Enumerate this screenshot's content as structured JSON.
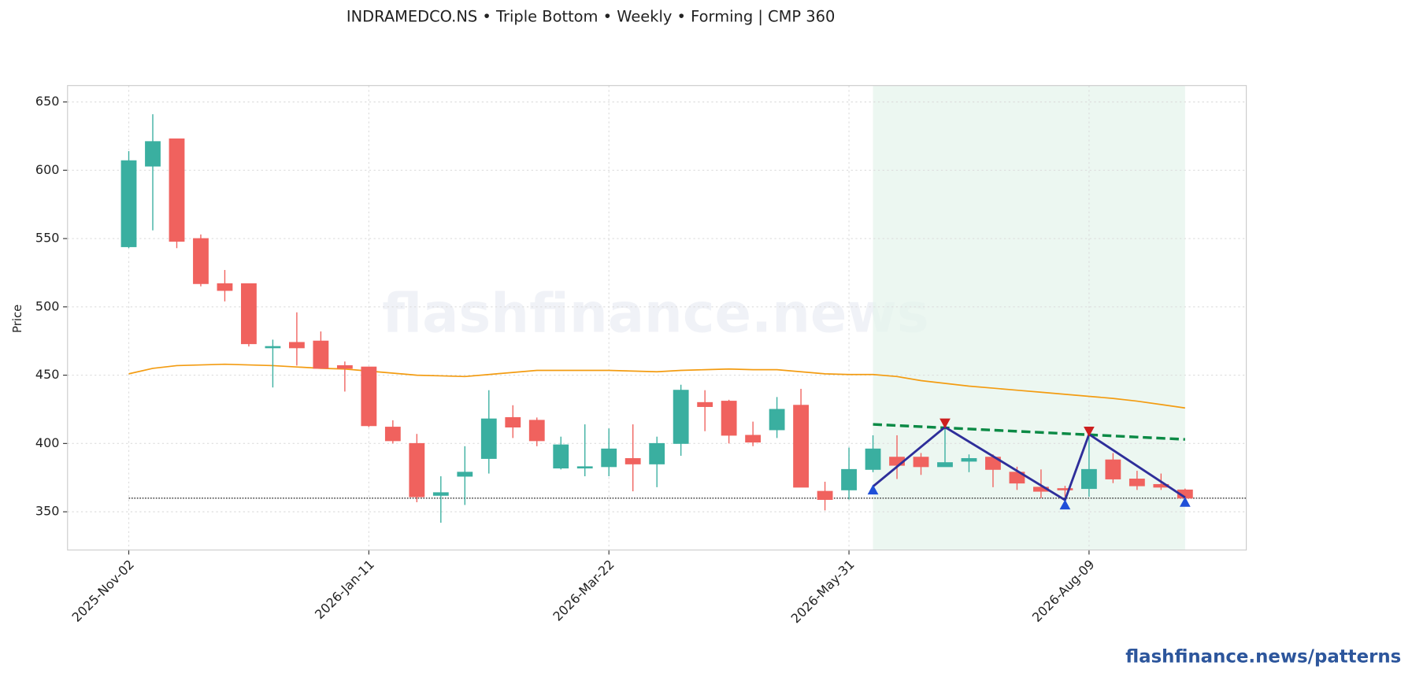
{
  "chart_data": {
    "type": "candlestick",
    "title": "INDRAMEDCO.NS  •  Triple Bottom  •  Weekly  •  Forming  |  CMP 360",
    "ylabel": "Price",
    "watermark": "flashfinance.news",
    "footer": "flashfinance.news/patterns",
    "categories": [
      "2025-Nov-02",
      null,
      null,
      null,
      null,
      null,
      null,
      null,
      null,
      null,
      "2026-Jan-11",
      null,
      null,
      null,
      null,
      null,
      null,
      null,
      null,
      null,
      "2026-Mar-22",
      null,
      null,
      null,
      null,
      null,
      null,
      null,
      null,
      null,
      "2026-May-31",
      null,
      null,
      null,
      null,
      null,
      null,
      null,
      null,
      null,
      "2026-Aug-09",
      null,
      null,
      null,
      null
    ],
    "open": [
      544,
      603,
      623,
      550,
      517,
      517,
      470,
      474,
      475,
      457,
      456,
      412,
      400,
      362,
      376,
      389,
      419,
      417,
      382,
      382,
      383,
      389,
      385,
      400,
      430,
      431,
      406,
      410,
      428,
      365,
      366,
      381,
      390,
      390,
      383,
      387,
      390,
      379,
      368,
      367,
      367,
      388,
      374,
      370,
      366
    ],
    "high": [
      614,
      641,
      623,
      553,
      527,
      517,
      476,
      496,
      482,
      460,
      456,
      417,
      407,
      376,
      398,
      439,
      428,
      419,
      405,
      414,
      411,
      414,
      405,
      443,
      439,
      432,
      416,
      434,
      440,
      372,
      397,
      406,
      406,
      393,
      411,
      392,
      392,
      383,
      381,
      369,
      406,
      393,
      380,
      378,
      367
    ],
    "low": [
      543,
      556,
      543,
      515,
      504,
      471,
      441,
      457,
      455,
      438,
      412,
      400,
      357,
      342,
      355,
      378,
      404,
      398,
      381,
      376,
      376,
      365,
      368,
      391,
      409,
      400,
      398,
      404,
      368,
      351,
      359,
      379,
      374,
      377,
      383,
      379,
      368,
      366,
      360,
      361,
      361,
      371,
      366,
      366,
      359
    ],
    "close": [
      607,
      621,
      548,
      517,
      512,
      473,
      471,
      470,
      455,
      455,
      413,
      402,
      361,
      364,
      379,
      418,
      412,
      402,
      399,
      383,
      396,
      385,
      400,
      439,
      427,
      406,
      401,
      425,
      368,
      359,
      381,
      396,
      384,
      383,
      386,
      389,
      381,
      371,
      365,
      366,
      381,
      374,
      369,
      368,
      360
    ],
    "up_color": "#3aafa0",
    "down_color": "#f0625e",
    "ma": {
      "color": "#f39c12",
      "values": [
        451,
        455,
        457,
        457.5,
        458,
        457.5,
        457,
        456,
        455,
        454.5,
        453,
        451.5,
        450,
        449.5,
        449,
        450.5,
        452,
        453.5,
        453.5,
        453.5,
        453.5,
        453,
        452.5,
        453.5,
        454,
        454.5,
        454,
        454,
        452.5,
        451,
        450.5,
        450.5,
        449,
        446,
        444,
        442,
        440.5,
        439,
        437.5,
        436,
        434.5,
        433,
        431,
        428.5,
        426
      ]
    },
    "support": {
      "value": 360,
      "color": "#333333"
    },
    "zone": {
      "x": [
        31,
        44
      ],
      "color": "#e6f4ec"
    },
    "resistance": {
      "x": [
        31,
        44
      ],
      "values": [
        414,
        403
      ],
      "color": "#0b8a45"
    },
    "pattern": {
      "x": [
        31,
        34,
        39,
        40,
        44
      ],
      "values": [
        368.5,
        412,
        358.6,
        406.7,
        360.5
      ],
      "color": "#2e2e9a"
    },
    "troughs": {
      "x": [
        31,
        39,
        44
      ],
      "values": [
        366,
        355,
        357
      ],
      "color": "#1f4fd8"
    },
    "peaks": {
      "x": [
        34,
        40
      ],
      "values": [
        415,
        409
      ],
      "color": "#cc1f1f"
    },
    "ylim": [
      322,
      662
    ],
    "yticks": [
      350,
      400,
      450,
      500,
      550,
      600,
      650
    ],
    "grid": true
  }
}
